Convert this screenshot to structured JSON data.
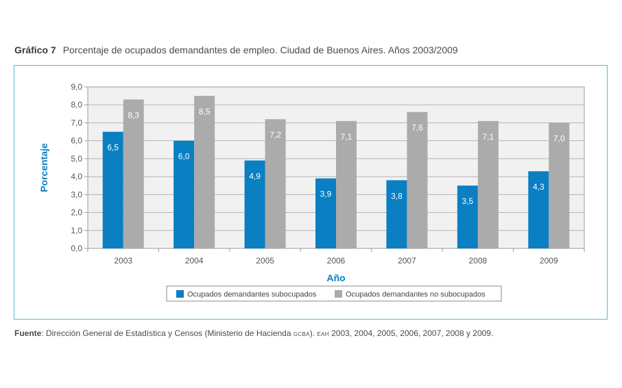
{
  "title": {
    "label": "Gráfico 7",
    "text": "Porcentaje de ocupados demandantes de empleo. Ciudad de Buenos Aires. Años 2003/2009"
  },
  "source": {
    "label": "Fuente",
    "sep": ": ",
    "text_a": "Dirección General de Estadística y Censos (Ministerio de Hacienda ",
    "org": "GCBA",
    "text_b": "). ",
    "survey": "EAH",
    "text_c": " 2003, 2004, 2005, 2006, 2007, 2008 y 2009."
  },
  "chart_data": {
    "type": "bar",
    "categories": [
      "2003",
      "2004",
      "2005",
      "2006",
      "2007",
      "2008",
      "2009"
    ],
    "series": [
      {
        "name": "Ocupados demandantes subocupados",
        "values": [
          6.5,
          6.0,
          4.9,
          3.9,
          3.8,
          3.5,
          4.3
        ],
        "labels": [
          "6,5",
          "6,0",
          "4,9",
          "3,9",
          "3,8",
          "3,5",
          "4,3"
        ],
        "color": "#0a7fc2"
      },
      {
        "name": "Ocupados demandantes no subocupados",
        "values": [
          8.3,
          8.5,
          7.2,
          7.1,
          7.6,
          7.1,
          7.0
        ],
        "labels": [
          "8,3",
          "8,5",
          "7,2",
          "7,1",
          "7,6",
          "7,1",
          "7,0"
        ],
        "color": "#ababab"
      }
    ],
    "xlabel": "Año",
    "ylabel": "Porcentaje",
    "ylim": [
      0,
      9
    ],
    "yticks": [
      0,
      1,
      2,
      3,
      4,
      5,
      6,
      7,
      8,
      9
    ],
    "ytick_labels": [
      "0,0",
      "1,0",
      "2,0",
      "3,0",
      "4,0",
      "5,0",
      "6,0",
      "7,0",
      "8,0",
      "9,0"
    ],
    "grid": true,
    "legend": "bottom-center",
    "axis_label_color": "#0a7fc2"
  }
}
